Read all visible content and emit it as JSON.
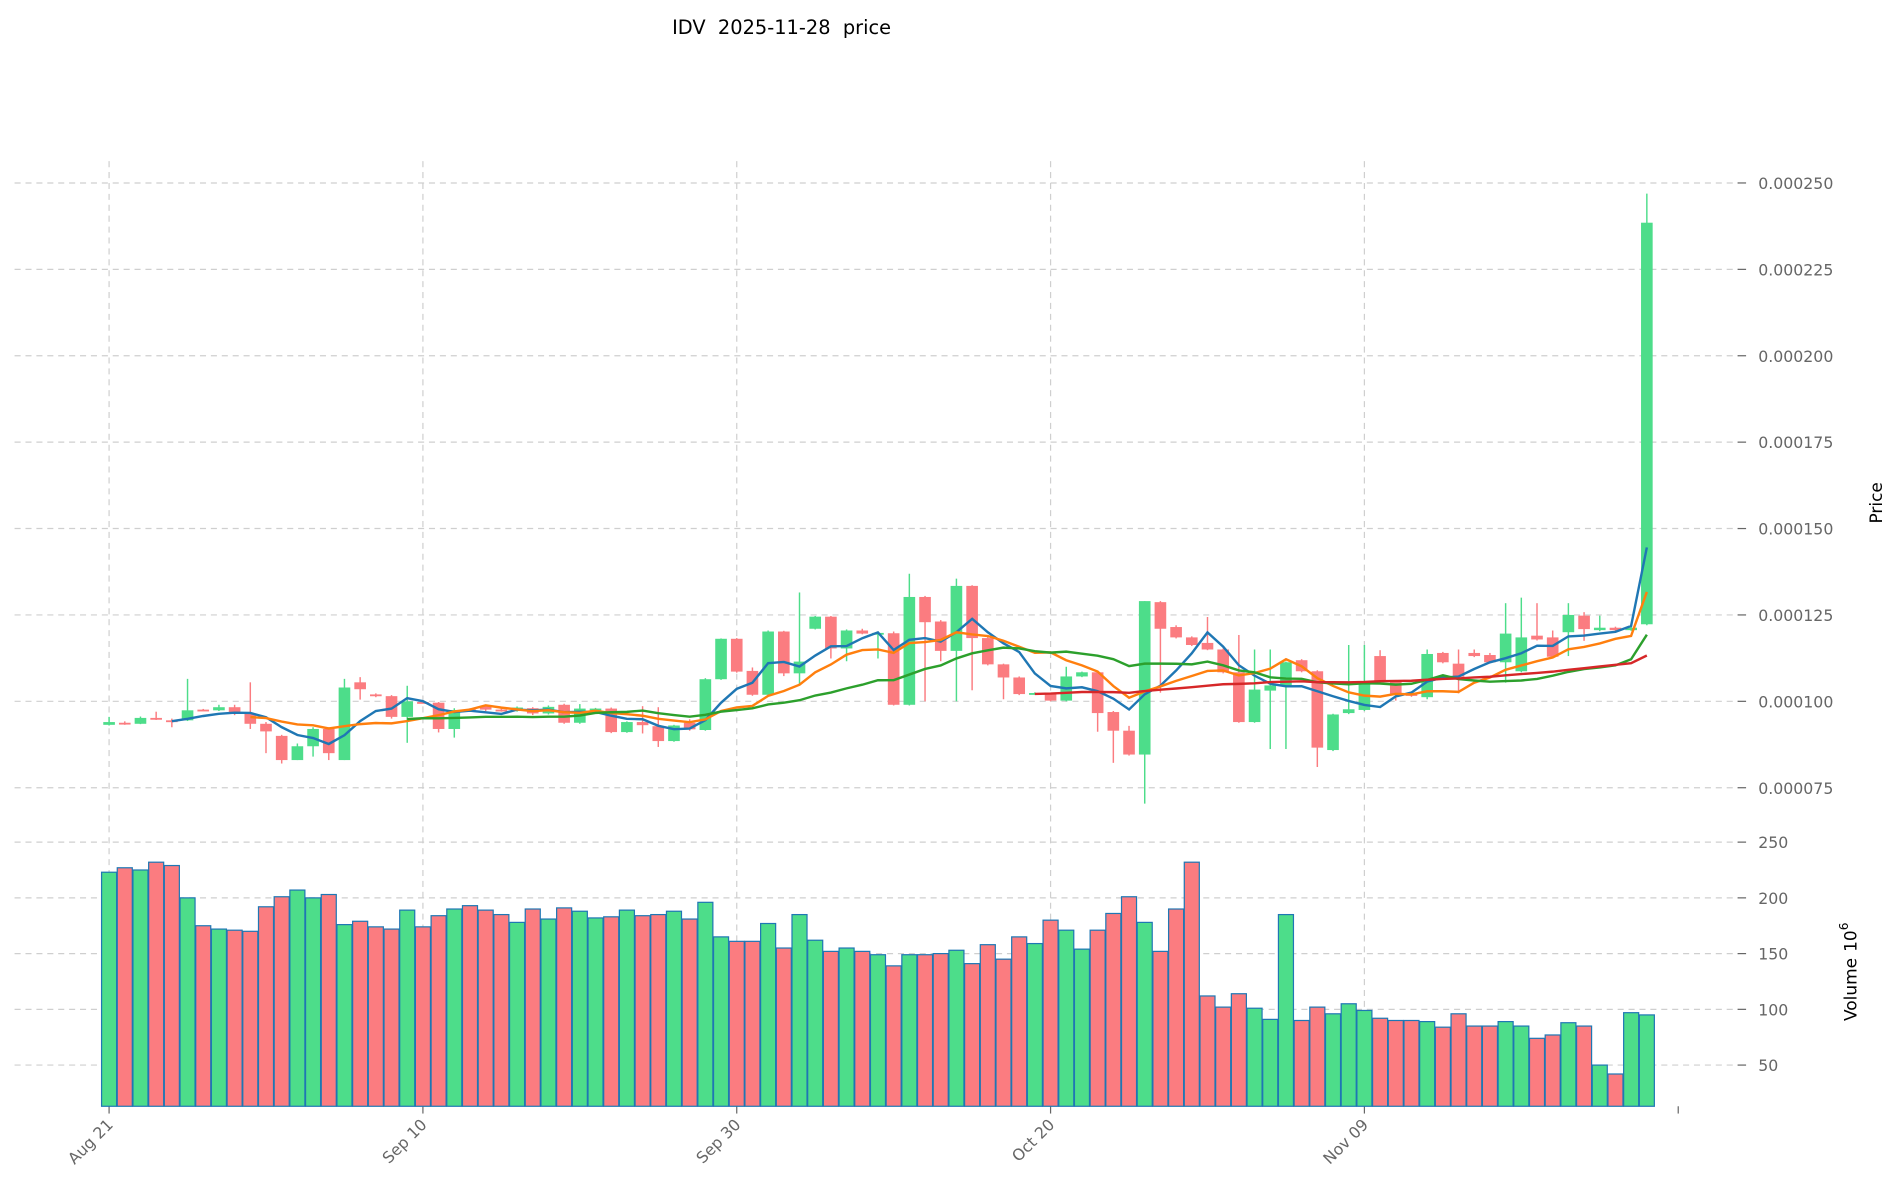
{
  "chart_data": {
    "type": "candlestick",
    "title": "IDV  2025-11-28  price",
    "ylabel_price": "Price",
    "ylabel_volume": "Volume",
    "ylabel_volume_exp": "10",
    "ylabel_volume_pow": "6",
    "start_date": "2025-08-21",
    "interval": "1 day",
    "x_ticks": [
      {
        "label": "Aug 21",
        "index": 0
      },
      {
        "label": "Sep 10",
        "index": 20
      },
      {
        "label": "Sep 30",
        "index": 40
      },
      {
        "label": "Oct 20",
        "index": 60
      },
      {
        "label": "Nov 09",
        "index": 80
      }
    ],
    "price_ticks": [
      "0.000075",
      "0.000100",
      "0.000125",
      "0.000150",
      "0.000175",
      "0.000200",
      "0.000225",
      "0.000250"
    ],
    "price_tick_values": [
      75,
      100,
      125,
      150,
      175,
      200,
      225,
      250
    ],
    "price_unit": "1e-6",
    "price_ylim": [
      70,
      256
    ],
    "volume_ticks": [
      "50",
      "100",
      "150",
      "200",
      "250"
    ],
    "volume_tick_values": [
      50,
      100,
      150,
      200,
      250
    ],
    "volume_ylim": [
      13,
      250
    ],
    "grid": true,
    "ohlc_x1e-6": [
      [
        93.2,
        95.5,
        93,
        94
      ],
      [
        93.8,
        94.2,
        93.2,
        93.3
      ],
      [
        93.5,
        95.6,
        93.4,
        95.2
      ],
      [
        95.2,
        97,
        94.6,
        94.8
      ],
      [
        94.5,
        95,
        92.5,
        94
      ],
      [
        94.5,
        106.5,
        94.3,
        97.4
      ],
      [
        97.6,
        97.8,
        97.3,
        97.4
      ],
      [
        97.4,
        99,
        97.2,
        98.3
      ],
      [
        98.3,
        99,
        96,
        96.5
      ],
      [
        96.5,
        105.5,
        92,
        93.5
      ],
      [
        93.5,
        94,
        85,
        91.3
      ],
      [
        90,
        90.3,
        82,
        83
      ],
      [
        83,
        87.8,
        83,
        87
      ],
      [
        87,
        92.5,
        84,
        92
      ],
      [
        92,
        92.5,
        83,
        85
      ],
      [
        83,
        106.5,
        83,
        104
      ],
      [
        105.5,
        107,
        100.5,
        103.5
      ],
      [
        102,
        102.3,
        101.2,
        101.5
      ],
      [
        101.5,
        101.8,
        95,
        95.5
      ],
      [
        95.5,
        104.5,
        88,
        100
      ],
      [
        99.8,
        100,
        99.4,
        99.6
      ],
      [
        99.6,
        99.8,
        91,
        92
      ],
      [
        92,
        98,
        89.5,
        97.5
      ],
      [
        97.7,
        98,
        97.2,
        97.4
      ],
      [
        98.5,
        98.8,
        97.2,
        97.6
      ],
      [
        97.6,
        97.9,
        97,
        97.3
      ],
      [
        97.3,
        98.5,
        97,
        98.2
      ],
      [
        98,
        98.3,
        96,
        96.5
      ],
      [
        96.5,
        98.8,
        96.2,
        98.4
      ],
      [
        99,
        99.3,
        93.5,
        93.8
      ],
      [
        93.8,
        99.2,
        93.5,
        97.9
      ],
      [
        97.6,
        98.1,
        97.4,
        97.9
      ],
      [
        97.9,
        98.2,
        90.8,
        91.1
      ],
      [
        91.1,
        94.2,
        90.9,
        94
      ],
      [
        94,
        98.6,
        90.7,
        93.1
      ],
      [
        92.8,
        98.3,
        86.8,
        88.5
      ],
      [
        88.5,
        93.2,
        88.3,
        93
      ],
      [
        93.8,
        94.8,
        91.5,
        91.9
      ],
      [
        91.7,
        106.7,
        91.5,
        106.4
      ],
      [
        106.4,
        118.2,
        106.2,
        118.1
      ],
      [
        118.1,
        118.3,
        108.3,
        108.6
      ],
      [
        108.8,
        109.8,
        101.6,
        101.9
      ],
      [
        101.9,
        120.5,
        101.7,
        120.2
      ],
      [
        120.2,
        120.4,
        107.3,
        108.1
      ],
      [
        108.1,
        131.5,
        105,
        111.5
      ],
      [
        121,
        124.7,
        120.8,
        124.5
      ],
      [
        124.5,
        124.7,
        112.4,
        115.3
      ],
      [
        115.3,
        120.8,
        111.6,
        120.5
      ],
      [
        120.5,
        121,
        119.4,
        119.6
      ],
      [
        119.6,
        120,
        112.4,
        119.8
      ],
      [
        119.7,
        120.2,
        98.8,
        99
      ],
      [
        99,
        136.9,
        98.8,
        130.2
      ],
      [
        130.2,
        130.5,
        100,
        122.9
      ],
      [
        123.1,
        123.5,
        111.6,
        114.6
      ],
      [
        114.6,
        135.5,
        100,
        133.4
      ],
      [
        133.4,
        133.6,
        103.2,
        118.3
      ],
      [
        118.3,
        118.6,
        110.4,
        110.7
      ],
      [
        110.7,
        110.9,
        100.6,
        106.9
      ],
      [
        106.9,
        107.2,
        101.8,
        102.1
      ],
      [
        102.2,
        102.6,
        102,
        102.4
      ],
      [
        102.1,
        102.3,
        100,
        100.2
      ],
      [
        100.2,
        110,
        100,
        107.2
      ],
      [
        107.2,
        108.6,
        107,
        108.4
      ],
      [
        108.4,
        108.6,
        91.2,
        96.6
      ],
      [
        96.9,
        97.2,
        82.2,
        91.5
      ],
      [
        91.5,
        92.9,
        84.3,
        84.6
      ],
      [
        84.6,
        129,
        70.4,
        129
      ],
      [
        128.7,
        129,
        102.5,
        121
      ],
      [
        121.5,
        122,
        118.2,
        118.5
      ],
      [
        118.5,
        118.8,
        116,
        116.3
      ],
      [
        116.9,
        124.4,
        114.8,
        115
      ],
      [
        115,
        115.3,
        108.1,
        108.4
      ],
      [
        108.4,
        119.2,
        93.8,
        94
      ],
      [
        94,
        115,
        93.8,
        103.4
      ],
      [
        103.1,
        115,
        86.2,
        104.6
      ],
      [
        104.6,
        111.5,
        86.2,
        111.3
      ],
      [
        111.9,
        112.2,
        108.4,
        108.7
      ],
      [
        108.7,
        109,
        81,
        86.6
      ],
      [
        85.9,
        96.4,
        85.6,
        96.2
      ],
      [
        96.6,
        116.3,
        96.3,
        97.7
      ],
      [
        97.5,
        116.3,
        97.2,
        105.6
      ],
      [
        113.1,
        114.8,
        105.3,
        105.6
      ],
      [
        105.6,
        105.8,
        100.2,
        102.1
      ],
      [
        102.1,
        102.4,
        101.3,
        101.6
      ],
      [
        101.2,
        115,
        100.6,
        113.7
      ],
      [
        114,
        114.3,
        111,
        111.3
      ],
      [
        110.9,
        115,
        102.3,
        107.1
      ],
      [
        114,
        115,
        112.8,
        113.1
      ],
      [
        113.4,
        114,
        111,
        111.3
      ],
      [
        111.3,
        128.4,
        105.4,
        119.6
      ],
      [
        108.7,
        130,
        108.4,
        118.5
      ],
      [
        119,
        128.4,
        117.6,
        117.9
      ],
      [
        118.5,
        120.5,
        112.6,
        112.9
      ],
      [
        120,
        128.4,
        113.1,
        125
      ],
      [
        124.8,
        125.8,
        117.5,
        120.9
      ],
      [
        120.6,
        124.8,
        120.3,
        121.3
      ],
      [
        121.3,
        121.6,
        120.3,
        120.6
      ],
      [
        120.6,
        121.6,
        120.4,
        121.3
      ],
      [
        122.3,
        246.9,
        122,
        238.5
      ]
    ],
    "volume_x1e6": [
      223,
      227,
      225,
      232,
      229,
      200,
      175,
      172,
      171,
      170,
      192,
      201,
      207,
      200,
      203,
      176,
      179,
      174,
      172,
      189,
      174,
      184,
      190,
      193,
      189,
      185,
      178,
      190,
      181,
      191,
      188,
      182,
      183,
      189,
      184,
      185,
      188,
      181,
      196,
      165,
      161,
      161,
      177,
      155,
      185,
      162,
      152,
      155,
      152,
      149,
      139,
      149,
      149,
      150,
      153,
      141,
      158,
      145,
      165,
      159,
      180,
      171,
      154,
      171,
      186,
      201,
      178,
      152,
      190,
      232,
      112,
      102,
      114,
      101,
      91,
      185,
      90,
      102,
      96,
      105,
      99,
      92,
      90,
      90,
      89,
      84,
      96,
      85,
      85,
      89,
      85,
      74,
      77,
      88,
      85,
      50,
      42,
      97,
      95
    ],
    "moving_averages": [
      {
        "period": 5,
        "color": "#1f77b4"
      },
      {
        "period": 10,
        "color": "#ff7f0e"
      },
      {
        "period": 20,
        "color": "#2ca02c"
      },
      {
        "period": 60,
        "color": "#d62728"
      }
    ],
    "colors": {
      "up": "#4ddd8a",
      "down": "#fb7c80",
      "volume_edge": "#1f77b4"
    }
  }
}
